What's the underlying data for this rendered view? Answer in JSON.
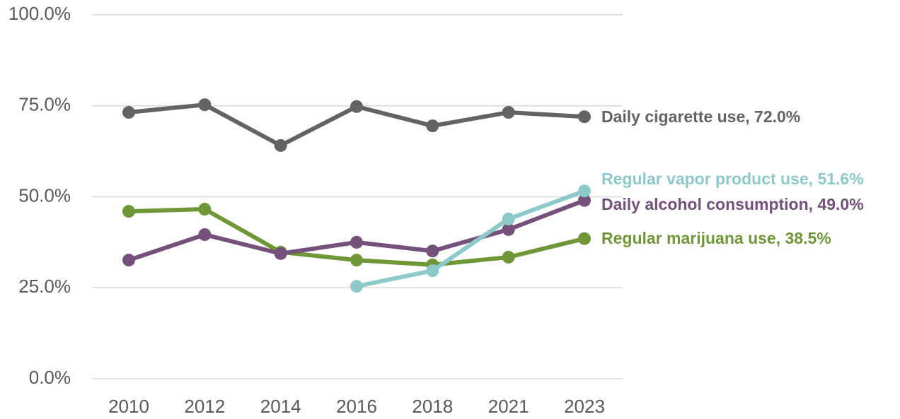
{
  "chart_data": {
    "type": "line",
    "categories": [
      "2010",
      "2012",
      "2014",
      "2016",
      "2018",
      "2021",
      "2023"
    ],
    "ylim": [
      0,
      100
    ],
    "yticks": [
      {
        "value": 0,
        "label": "0.0%"
      },
      {
        "value": 25,
        "label": "25.0%"
      },
      {
        "value": 50,
        "label": "50.0%"
      },
      {
        "value": 75,
        "label": "75.0%"
      },
      {
        "value": 100,
        "label": "100.0%"
      }
    ],
    "grid": true,
    "series": [
      {
        "label": "Daily cigarette use, 72.0%",
        "color": "#636363",
        "values": [
          73.2,
          75.3,
          64.1,
          74.8,
          69.5,
          73.2,
          72.0
        ]
      },
      {
        "label": "Regular vapor product use, 51.6%",
        "color": "#8ec9c9",
        "values": [
          null,
          null,
          null,
          25.4,
          29.7,
          43.9,
          51.6
        ]
      },
      {
        "label": "Daily alcohol consumption, 49.0%",
        "color": "#74507a",
        "values": [
          32.6,
          39.6,
          34.4,
          37.5,
          35.1,
          41.0,
          49.0
        ]
      },
      {
        "label": "Regular marijuana use, 38.5%",
        "color": "#6f9637",
        "values": [
          46.0,
          46.6,
          34.8,
          32.6,
          31.3,
          33.4,
          38.5
        ]
      }
    ]
  }
}
